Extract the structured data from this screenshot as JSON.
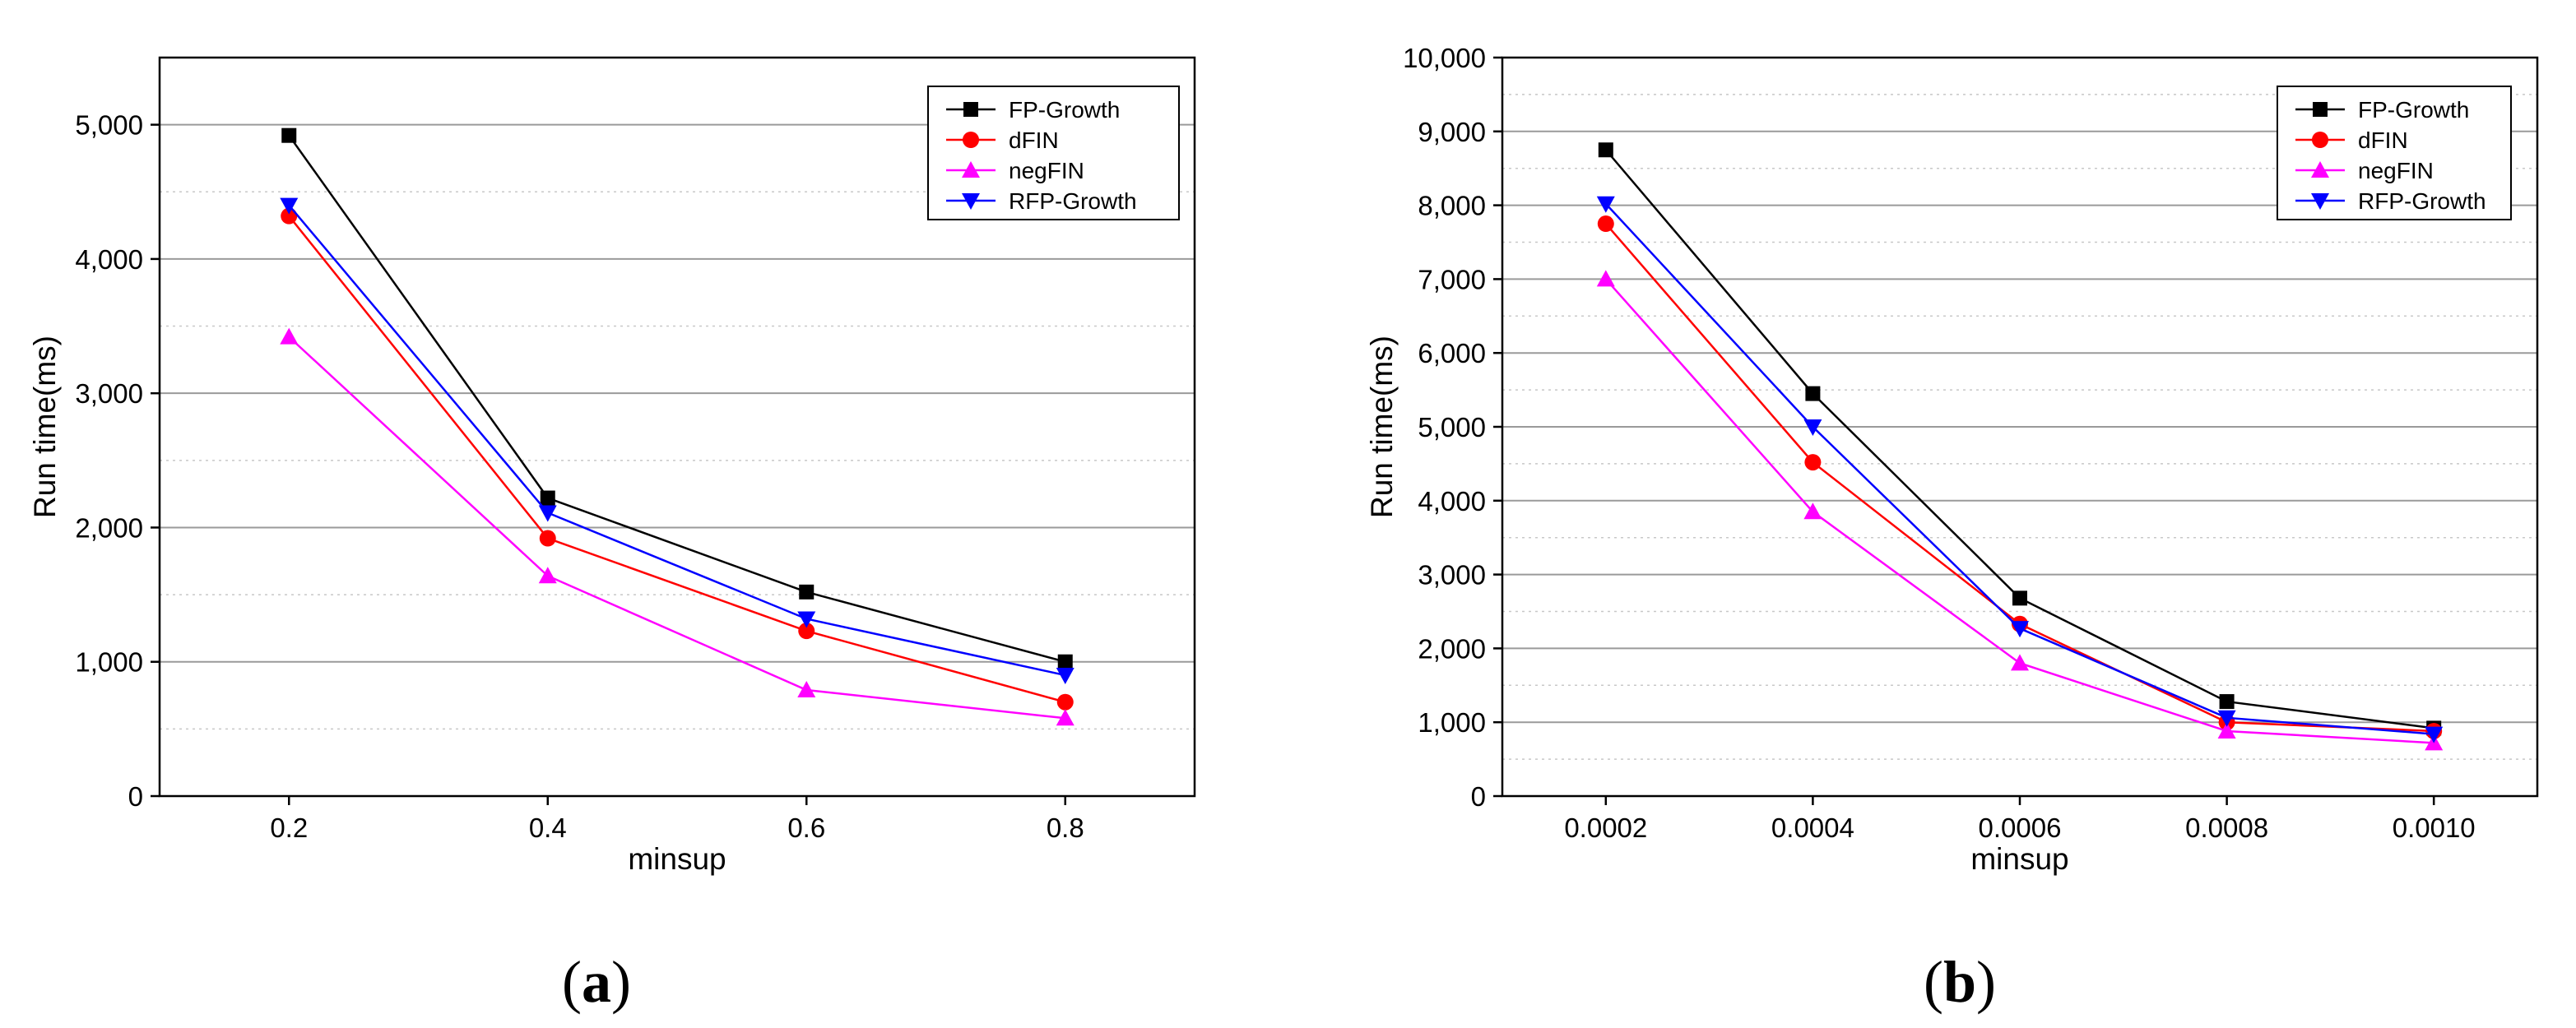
{
  "chart_data": [
    {
      "type": "line",
      "panel_label": "(a)",
      "panel_letter": "a",
      "title": "",
      "xlabel": "minsup",
      "ylabel": "Run time(ms)",
      "categories": [
        "0.2",
        "0.4",
        "0.6",
        "0.8"
      ],
      "ylim": [
        0,
        5500
      ],
      "yticks": [
        0,
        1000,
        2000,
        3000,
        4000,
        5000
      ],
      "ytick_labels": [
        "0",
        "1,000",
        "2,000",
        "3,000",
        "4,000",
        "5,000"
      ],
      "minor_gridlines": [
        500,
        1500,
        2500,
        3500,
        4500
      ],
      "grid": true,
      "legend_position": "top-right",
      "series": [
        {
          "name": "FP-Growth",
          "color": "#000000",
          "marker": "square",
          "values": [
            4920,
            2220,
            1520,
            1000
          ]
        },
        {
          "name": "dFIN",
          "color": "#ff0000",
          "marker": "circle",
          "values": [
            4320,
            1920,
            1230,
            700
          ]
        },
        {
          "name": "negFIN",
          "color": "#ff00ff",
          "marker": "triangle-up",
          "values": [
            3420,
            1640,
            790,
            580
          ]
        },
        {
          "name": "RFP-Growth",
          "color": "#0000ff",
          "marker": "triangle-down",
          "values": [
            4400,
            2110,
            1320,
            900
          ]
        }
      ]
    },
    {
      "type": "line",
      "panel_label": "(b)",
      "panel_letter": "b",
      "title": "",
      "xlabel": "minsup",
      "ylabel": "Run time(ms)",
      "categories": [
        "0.0002",
        "0.0004",
        "0.0006",
        "0.0008",
        "0.0010"
      ],
      "ylim": [
        0,
        10000
      ],
      "yticks": [
        0,
        1000,
        2000,
        3000,
        4000,
        5000,
        6000,
        7000,
        8000,
        9000,
        10000
      ],
      "ytick_labels": [
        "0",
        "1,000",
        "2,000",
        "3,000",
        "4,000",
        "5,000",
        "6,000",
        "7,000",
        "8,000",
        "9,000",
        "10,000"
      ],
      "minor_gridlines": [
        500,
        1500,
        2500,
        3500,
        4500,
        5500,
        6500,
        7500,
        8500,
        9500
      ],
      "grid": true,
      "legend_position": "top-right",
      "series": [
        {
          "name": "FP-Growth",
          "color": "#000000",
          "marker": "square",
          "values": [
            8750,
            5450,
            2680,
            1280,
            920
          ]
        },
        {
          "name": "dFIN",
          "color": "#ff0000",
          "marker": "circle",
          "values": [
            7750,
            4520,
            2330,
            1000,
            880
          ]
        },
        {
          "name": "negFIN",
          "color": "#ff00ff",
          "marker": "triangle-up",
          "values": [
            7000,
            3850,
            1800,
            880,
            720
          ]
        },
        {
          "name": "RFP-Growth",
          "color": "#0000ff",
          "marker": "triangle-down",
          "values": [
            8020,
            5000,
            2270,
            1060,
            840
          ]
        }
      ]
    }
  ]
}
